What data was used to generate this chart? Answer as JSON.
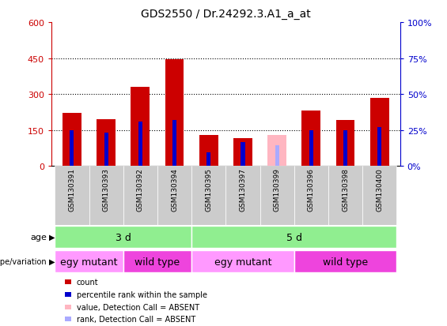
{
  "title": "GDS2550 / Dr.24292.3.A1_a_at",
  "samples": [
    "GSM130391",
    "GSM130393",
    "GSM130392",
    "GSM130394",
    "GSM130395",
    "GSM130397",
    "GSM130399",
    "GSM130396",
    "GSM130398",
    "GSM130400"
  ],
  "count_values": [
    220,
    195,
    330,
    445,
    130,
    115,
    0,
    230,
    190,
    285
  ],
  "rank_values": [
    150,
    140,
    185,
    190,
    55,
    100,
    0,
    150,
    148,
    162
  ],
  "absent_value": [
    0,
    0,
    0,
    0,
    0,
    0,
    130,
    0,
    0,
    0
  ],
  "absent_rank": [
    0,
    0,
    0,
    0,
    0,
    0,
    85,
    0,
    0,
    0
  ],
  "absent_mask": [
    false,
    false,
    false,
    false,
    false,
    false,
    true,
    false,
    false,
    false
  ],
  "ylim_left": [
    0,
    600
  ],
  "ylim_right": [
    0,
    100
  ],
  "yticks_left": [
    0,
    150,
    300,
    450,
    600
  ],
  "yticks_right": [
    0,
    25,
    50,
    75,
    100
  ],
  "ytick_labels_left": [
    "0",
    "150",
    "300",
    "450",
    "600"
  ],
  "ytick_labels_right": [
    "0%",
    "25%",
    "50%",
    "75%",
    "100%"
  ],
  "grid_lines": [
    150,
    300,
    450
  ],
  "age_groups": [
    {
      "label": "3 d",
      "start": 0,
      "end": 4
    },
    {
      "label": "5 d",
      "start": 4,
      "end": 10
    }
  ],
  "genotype_groups": [
    {
      "label": "egy mutant",
      "start": 0,
      "end": 2
    },
    {
      "label": "wild type",
      "start": 2,
      "end": 4
    },
    {
      "label": "egy mutant",
      "start": 4,
      "end": 7
    },
    {
      "label": "wild type",
      "start": 7,
      "end": 10
    }
  ],
  "age_color": "#90EE90",
  "genotype_color_light": "#FF99FF",
  "genotype_color_dark": "#EE44DD",
  "bar_color_red": "#CC0000",
  "bar_color_blue": "#0000CC",
  "bar_color_pink": "#FFB6C1",
  "bar_color_lightblue": "#AAAAFF",
  "bar_width": 0.55,
  "blue_bar_width": 0.12,
  "legend_items": [
    {
      "color": "#CC0000",
      "label": "count"
    },
    {
      "color": "#0000CC",
      "label": "percentile rank within the sample"
    },
    {
      "color": "#FFB6C1",
      "label": "value, Detection Call = ABSENT"
    },
    {
      "color": "#AAAAFF",
      "label": "rank, Detection Call = ABSENT"
    }
  ],
  "left_axis_color": "#CC0000",
  "right_axis_color": "#0000CC",
  "age_label": "age",
  "genotype_label": "genotype/variation",
  "sample_bg_color": "#CCCCCC",
  "white": "#FFFFFF"
}
